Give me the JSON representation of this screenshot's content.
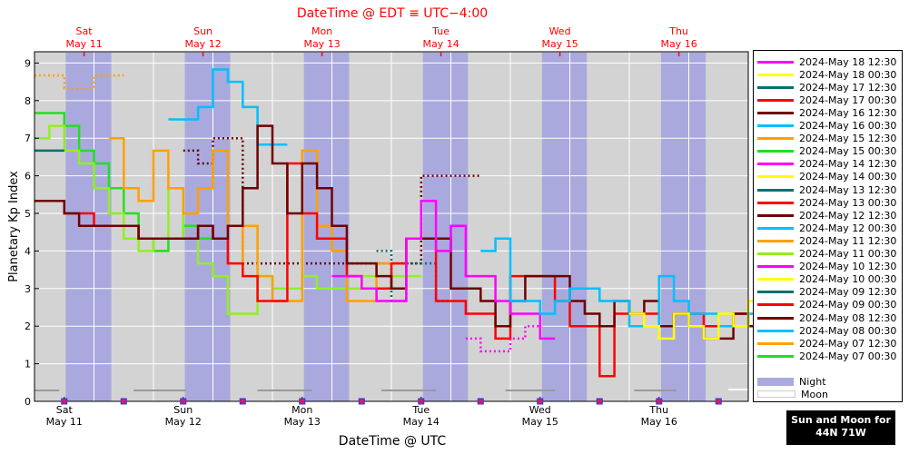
{
  "top_title": "DateTime @ EDT ≡ UTC−4:00",
  "bottom_title": "DateTime @ UTC",
  "ylabel": "Planetary Kp Index",
  "top_ticks": [
    {
      "day": "Sat",
      "date": "May 11",
      "t": 0.5
    },
    {
      "day": "Sun",
      "date": "May 12",
      "t": 1.5
    },
    {
      "day": "Mon",
      "date": "May 13",
      "t": 2.5
    },
    {
      "day": "Tue",
      "date": "May 14",
      "t": 3.5
    },
    {
      "day": "Wed",
      "date": "May 15",
      "t": 4.5
    },
    {
      "day": "Thu",
      "date": "May 16",
      "t": 5.5
    }
  ],
  "bottom_ticks": [
    {
      "day": "Sat",
      "date": "May 11",
      "t": 0.25
    },
    {
      "day": "Sun",
      "date": "May 12",
      "t": 1.25
    },
    {
      "day": "Mon",
      "date": "May 13",
      "t": 2.25
    },
    {
      "day": "Tue",
      "date": "May 14",
      "t": 3.25
    },
    {
      "day": "Wed",
      "date": "May 15",
      "t": 4.25
    },
    {
      "day": "Thu",
      "date": "May 16",
      "t": 5.25
    }
  ],
  "legend": {
    "entries": [
      {
        "label": "2024-May 18 12:30",
        "color": "#ff00ff"
      },
      {
        "label": "2024-May 18 00:30",
        "color": "#ffff00"
      },
      {
        "label": "2024-May 17 12:30",
        "color": "#007070"
      },
      {
        "label": "2024-May 17 00:30",
        "color": "#ff0000"
      },
      {
        "label": "2024-May 16 12:30",
        "color": "#700000"
      },
      {
        "label": "2024-May 16 00:30",
        "color": "#00c0ff"
      },
      {
        "label": "2024-May 15 12:30",
        "color": "#ffa000"
      },
      {
        "label": "2024-May 15 00:30",
        "color": "#20e020"
      },
      {
        "label": "2024-May 14 12:30",
        "color": "#ff00ff"
      },
      {
        "label": "2024-May 14 00:30",
        "color": "#ffff00"
      },
      {
        "label": "2024-May 13 12:30",
        "color": "#007070"
      },
      {
        "label": "2024-May 13 00:30",
        "color": "#ff0000"
      },
      {
        "label": "2024-May 12 12:30",
        "color": "#700000"
      },
      {
        "label": "2024-May 12 00:30",
        "color": "#00c0ff"
      },
      {
        "label": "2024-May 11 12:30",
        "color": "#ffa000"
      },
      {
        "label": "2024-May 11 00:30",
        "color": "#90f020"
      },
      {
        "label": "2024-May 10 12:30",
        "color": "#ff00ff"
      },
      {
        "label": "2024-May 10 00:30",
        "color": "#ffff00"
      },
      {
        "label": "2024-May 09 12:30",
        "color": "#007070"
      },
      {
        "label": "2024-May 09 00:30",
        "color": "#ff0000"
      },
      {
        "label": "2024-May 08 12:30",
        "color": "#700000"
      },
      {
        "label": "2024-May 08 00:30",
        "color": "#00c0ff"
      },
      {
        "label": "2024-May 07 12:30",
        "color": "#ffa000"
      },
      {
        "label": "2024-May 07 00:30",
        "color": "#20e020"
      }
    ],
    "night_label": "Night",
    "moon_label": "Moon"
  },
  "sunmoon": {
    "line1": "Sun and Moon for",
    "line2": "44N 71W"
  },
  "colors": {
    "night": "#a9a9dd",
    "plot_bg": "#d3d3d3",
    "title": "#ff0000"
  },
  "chart_data": {
    "type": "line",
    "title": "DateTime @ EDT ≡ UTC−4:00",
    "xlabel": "DateTime @ UTC",
    "ylabel": "Planetary Kp Index",
    "xlim": [
      "2024-05-10 18:00",
      "2024-05-16 18:00"
    ],
    "ylim": [
      0,
      9.3
    ],
    "yticks": [
      0,
      1,
      2,
      3,
      4,
      5,
      6,
      7,
      8,
      9
    ],
    "grid": true,
    "legend_position": "right",
    "night_bands": [
      [
        "2024-05-11 00:18",
        "2024-05-11 09:30"
      ],
      [
        "2024-05-12 00:20",
        "2024-05-12 09:29"
      ],
      [
        "2024-05-13 00:21",
        "2024-05-13 09:28"
      ],
      [
        "2024-05-14 00:22",
        "2024-05-14 09:27"
      ],
      [
        "2024-05-15 00:23",
        "2024-05-15 09:26"
      ],
      [
        "2024-05-16 00:24",
        "2024-05-16 09:25"
      ]
    ],
    "moon_segments": [
      [
        "2024-05-10 18:00",
        "2024-05-10 23:00"
      ],
      [
        "2024-05-11 14:00",
        "2024-05-12 00:30"
      ],
      [
        "2024-05-12 15:00",
        "2024-05-13 02:00"
      ],
      [
        "2024-05-13 16:00",
        "2024-05-14 03:00"
      ],
      [
        "2024-05-14 17:00",
        "2024-05-15 03:00"
      ],
      [
        "2024-05-15 19:00",
        "2024-05-16 03:30"
      ],
      [
        "2024-05-16 14:00",
        "2024-05-16 18:00"
      ]
    ],
    "series": [
      {
        "name": "2024-May 07 00:30",
        "color": "#20e020",
        "style": "solid",
        "x0": 0,
        "values": [
          7.67,
          7.67,
          7.33,
          6.67,
          6.33,
          5.67,
          5.0,
          4.33,
          4.0,
          4.33,
          4.67,
          4.33
        ]
      },
      {
        "name": "2024-May 07 12:30",
        "color": "#ffa000",
        "style": "dotted",
        "x0": 0,
        "values": [
          8.67,
          8.67,
          8.33,
          8.33,
          8.67,
          8.67
        ]
      },
      {
        "name": "2024-May 08 00:30",
        "color": "#00c0ff",
        "style": "solid",
        "x0": 9,
        "values": [
          7.5,
          7.5,
          7.83,
          8.83,
          8.5,
          7.83,
          6.83,
          6.83
        ]
      },
      {
        "name": "2024-May 08 12:30",
        "color": "#700000",
        "style": "dotted",
        "x0": 10,
        "values": [
          6.67,
          6.33,
          7.0,
          7.0,
          3.67,
          3.67,
          3.67,
          3.67,
          3.67,
          3.67,
          3.67,
          3.67,
          3.67,
          3.67,
          3.67,
          3.67,
          6.0,
          6.0,
          6.0,
          6.0
        ]
      },
      {
        "name": "2024-May 09 12:30",
        "color": "#007070",
        "style": "dotted",
        "x0": 23,
        "values": [
          4.0,
          2.67,
          3.67,
          3.67,
          2.67
        ]
      },
      {
        "name": "2024-May 11 00:30",
        "color": "#90f020",
        "style": "solid",
        "x0": 0,
        "values": [
          7.0,
          7.33,
          6.67,
          6.33,
          5.67,
          5.0,
          4.33,
          4.0,
          4.33,
          5.67,
          4.33,
          3.67,
          3.33,
          2.33,
          2.33,
          3.33,
          3.0,
          3.0,
          3.33,
          3.0,
          3.0,
          3.0,
          3.33,
          3.33,
          3.33,
          3.33
        ]
      },
      {
        "name": "2024-May 11 12:30",
        "color": "#ffa000",
        "style": "solid",
        "x0": 5,
        "values": [
          7.0,
          5.67,
          5.33,
          6.67,
          5.67,
          5.0,
          5.67,
          6.67,
          3.67,
          4.67,
          3.33,
          2.67,
          2.67,
          6.67,
          4.67,
          4.0,
          2.67,
          2.67,
          3.67,
          3.67
        ]
      },
      {
        "name": "2024-May 13 00:30",
        "color": "#ff0000",
        "style": "solid",
        "x0": 0,
        "values": [
          5.33,
          5.33,
          5.0,
          5.0,
          4.67,
          4.67,
          4.67,
          4.33,
          4.33,
          4.33,
          4.33,
          4.67,
          4.33,
          3.67,
          3.33,
          2.67,
          2.67,
          6.33,
          5.0,
          4.33,
          4.33,
          3.33,
          3.0,
          3.0,
          3.67,
          4.33,
          4.33,
          2.67,
          2.67,
          2.33,
          2.33,
          1.67,
          3.33,
          3.33,
          3.33,
          2.67,
          2.0,
          2.0,
          0.67,
          2.33,
          2.33,
          2.33,
          2.0,
          2.33,
          2.33,
          2.0,
          2.0,
          2.33
        ]
      },
      {
        "name": "2024-May 16 12:30",
        "color": "#700000",
        "style": "solid",
        "x0": 0,
        "values": [
          5.33,
          5.33,
          5.0,
          4.67,
          4.67,
          4.67,
          4.67,
          4.33,
          4.33,
          4.33,
          4.33,
          4.67,
          4.33,
          4.67,
          5.67,
          7.33,
          6.33,
          5.0,
          6.33,
          5.67,
          4.67,
          3.67,
          3.67,
          3.33,
          3.0,
          4.33,
          4.33,
          4.33,
          3.0,
          3.0,
          2.67,
          2.0,
          2.67,
          3.33,
          3.33,
          3.33,
          2.67,
          2.33,
          2.0,
          2.67,
          2.33,
          2.67,
          2.0,
          2.33,
          2.0,
          1.67,
          1.67,
          2.33,
          2.0,
          1.67,
          2.33,
          5.33,
          4.33,
          3.0,
          3.0,
          2.67
        ]
      },
      {
        "name": "2024-May 14 12:30",
        "color": "#ff00ff",
        "style": "solid",
        "x0": 20,
        "values": [
          3.33,
          3.33,
          3.0,
          2.67,
          2.67,
          4.33,
          5.33,
          4.0,
          4.67,
          3.33,
          3.33,
          2.67,
          2.33,
          2.33,
          1.67
        ]
      },
      {
        "name": "2024-May 10 12:30",
        "color": "#ff00ff",
        "style": "dotted",
        "x0": 29,
        "values": [
          1.67,
          1.33,
          1.33,
          1.67,
          2.0
        ]
      },
      {
        "name": "2024-May 16 00:30",
        "color": "#00c0ff",
        "style": "solid",
        "x0": 30,
        "values": [
          4.0,
          4.33,
          2.67,
          2.67,
          2.33,
          2.67,
          3.0,
          3.0,
          2.67,
          2.67,
          2.0,
          2.0,
          3.33,
          2.67,
          2.33,
          2.33,
          2.0,
          2.0,
          2.33,
          2.0,
          2.0,
          2.33,
          2.33,
          2.33,
          2.0
        ]
      },
      {
        "name": "2024-May 18 00:30",
        "color": "#ffff00",
        "style": "solid",
        "x0": 40,
        "values": [
          2.33,
          2.0,
          1.67,
          2.33,
          2.0,
          1.67,
          2.33,
          2.0,
          2.67,
          2.33,
          2.0,
          2.0,
          2.0
        ]
      },
      {
        "name": "2024-May 17 12:30",
        "color": "#007070",
        "style": "solid",
        "x0": 0,
        "values": [
          6.67,
          6.67
        ]
      }
    ]
  }
}
